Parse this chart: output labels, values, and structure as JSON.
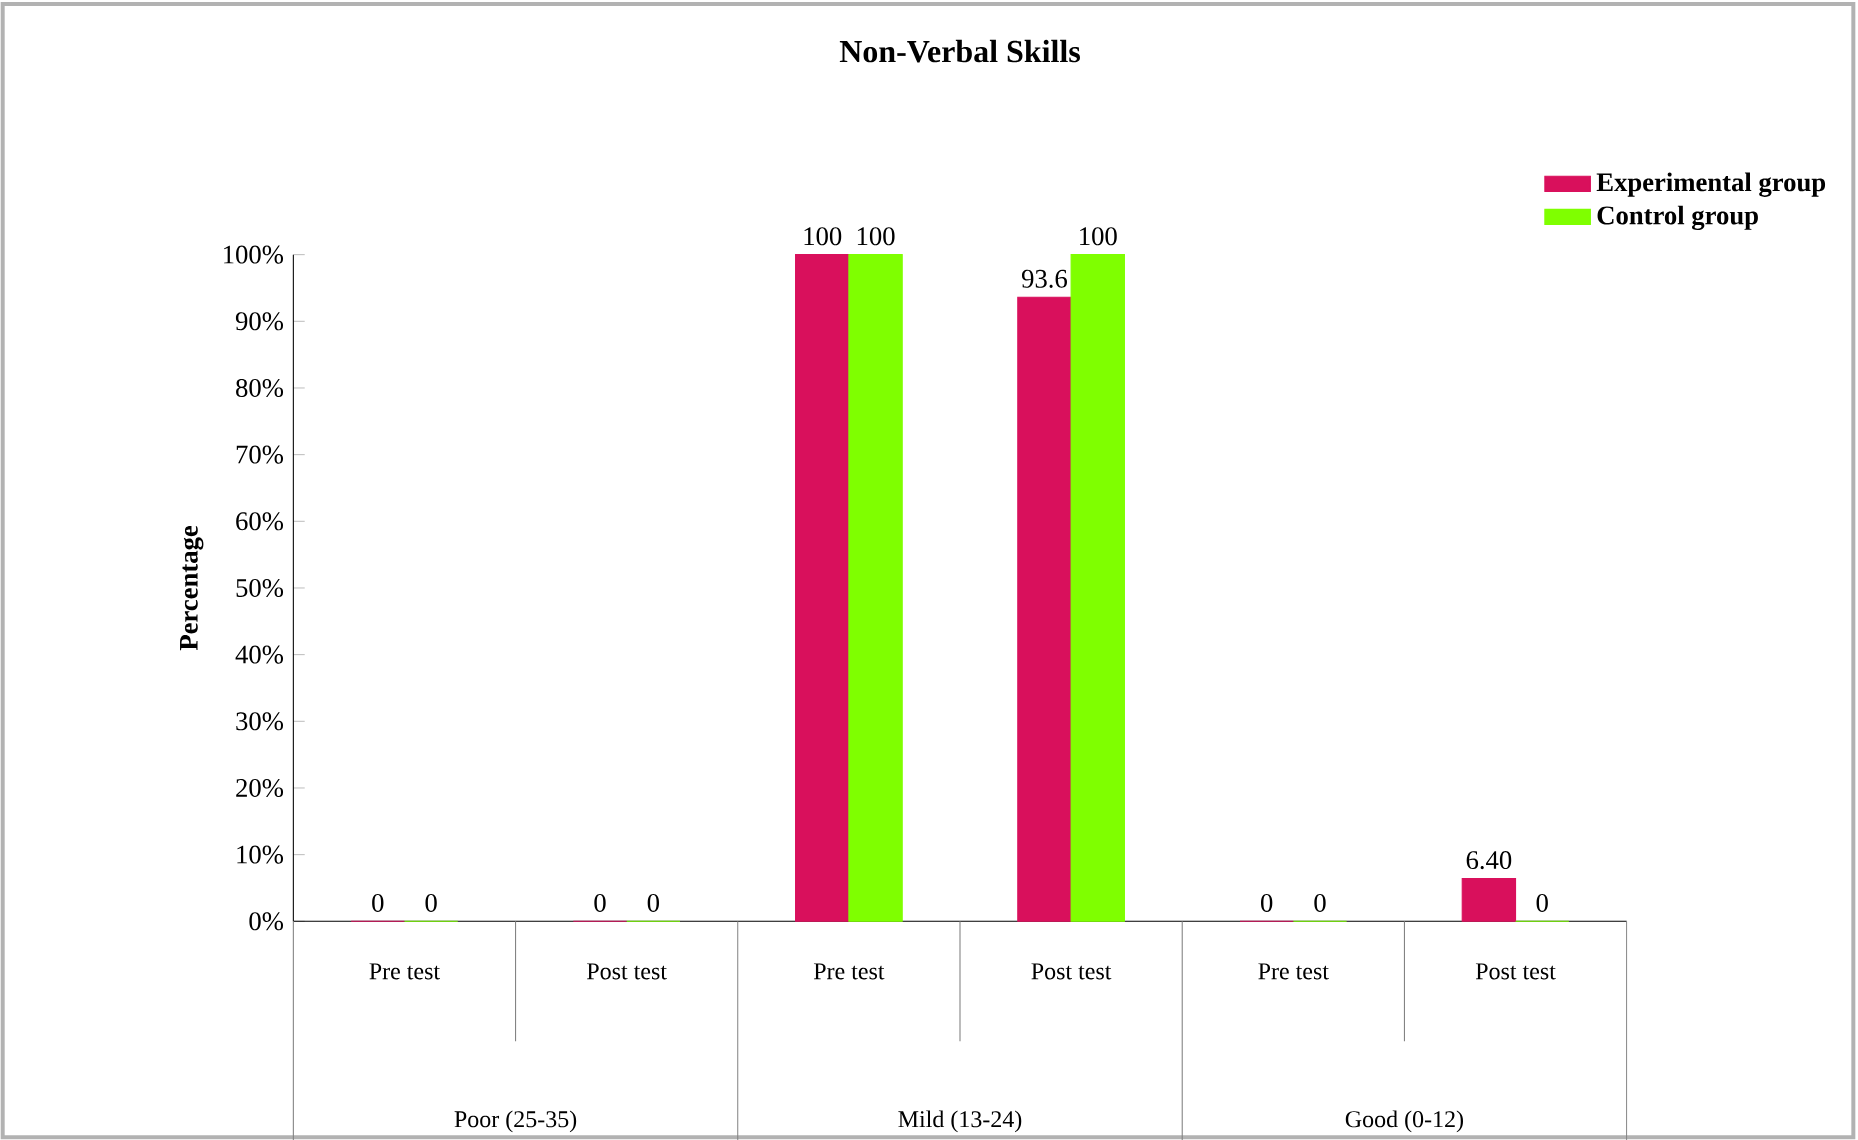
{
  "chart_data": {
    "type": "bar",
    "title": "Non-Verbal Skills",
    "ylabel": "Percentage",
    "categories": [
      "Pre test",
      "Post test",
      "Pre test",
      "Post test",
      "Pre test",
      "Post test"
    ],
    "annotations": [
      "Poor (25-35)",
      "Mild (13-24)",
      "Good (0-12)"
    ],
    "series": [
      {
        "name": "Experimental group",
        "color": "#d9105c",
        "values": [
          0,
          0,
          100,
          93.6,
          0,
          6.4
        ],
        "value_labels": [
          "0",
          "0",
          "100",
          "93.6",
          "0",
          "6.40"
        ]
      },
      {
        "name": "Control group",
        "color": "#7fff00",
        "values": [
          0,
          0,
          100,
          100,
          0,
          0
        ],
        "value_labels": [
          "0",
          "0",
          "100",
          "100",
          "0",
          "0"
        ]
      }
    ],
    "ylim": [
      0,
      100
    ],
    "yticks": [
      {
        "value": 0,
        "label": "0%"
      },
      {
        "value": 10,
        "label": "10%"
      },
      {
        "value": 20,
        "label": "20%"
      },
      {
        "value": 30,
        "label": "30%"
      },
      {
        "value": 40,
        "label": "40%"
      },
      {
        "value": 50,
        "label": "50%"
      },
      {
        "value": 60,
        "label": "60%"
      },
      {
        "value": 70,
        "label": "70%"
      },
      {
        "value": 80,
        "label": "80%"
      },
      {
        "value": 90,
        "label": "90%"
      },
      {
        "value": 100,
        "label": "100%"
      }
    ],
    "legend": "top right",
    "grid": false
  }
}
